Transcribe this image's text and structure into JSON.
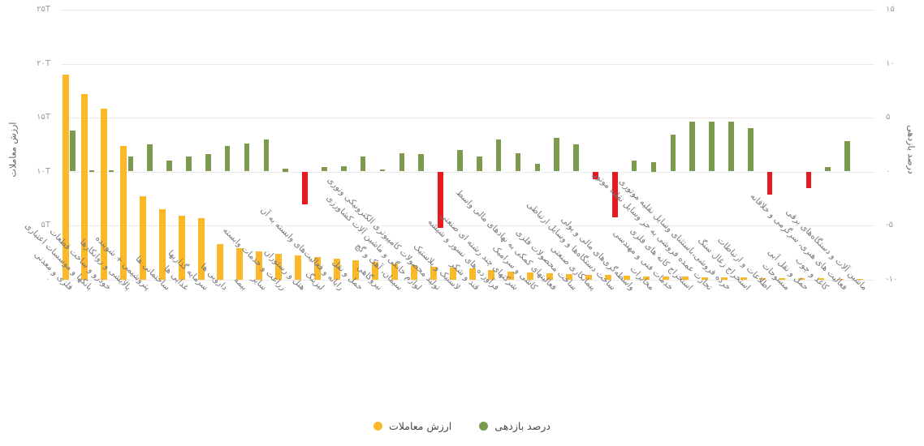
{
  "chart_data": {
    "type": "bar",
    "title": "",
    "left_axis": {
      "title": "ارزش معاملات",
      "ticks": [
        "۲۵T",
        "۲۰T",
        "۱۵T",
        "۱۰T",
        "۵T",
        "۰"
      ],
      "tick_values": [
        25,
        20,
        15,
        10,
        5,
        0
      ],
      "ylim": [
        0,
        25
      ],
      "unit": "T"
    },
    "right_axis": {
      "title": "درصد بازدهی",
      "ticks": [
        "۱۵",
        "۱۰",
        "۵",
        "۰",
        "-۵",
        "-۱۰"
      ],
      "tick_values": [
        15,
        10,
        5,
        0,
        -5,
        -10
      ],
      "ylim": [
        -10,
        15
      ]
    },
    "grid": "horizontal",
    "legend_position": "bottom-center",
    "legend": [
      {
        "label": "ارزش معاملات",
        "color": "#FBB829"
      },
      {
        "label": "درصد بازدهی",
        "color": "#7C9A4E"
      }
    ],
    "negative_color": "#E8191F",
    "categories": [
      "فلزی و معدنی",
      "بانکها و موسسات اعتباری",
      "خودرو و ساخت قطعات",
      "پالایشی و روانکارها",
      "پتروشیمی + شوینده",
      "ساختمانی ها",
      "غذایی ها",
      "سرمایه گذاریها",
      "دارویی ها",
      "بیمه",
      "سایر",
      "زراعت و خدمات وابسته",
      "هتل و رستوران",
      "لیزینگ",
      "رایانه و فعالیت‌های وابسته به آن",
      "حمل و نقل",
      "نیروگاهی",
      "سیمان، آهک و گچ",
      "لوازم خانگی و ماشین آلات کشاورزی",
      "تولید محصولات کامپیوتری الکترونیکی ونوری",
      "لاستیک و پلاستیک",
      "قند و شکر",
      "فرآورده های نسوز و شیشه",
      "شرکتهای چند رشته ای صنعتی",
      "کاشی و سرامیک",
      "فعالیتهای کمکی به نهادهای مالی واسط",
      "ساخت محصولات فلزی",
      "پیمانکاری صنعتی",
      "ساخت دستگاه‌ها و وسایل ارتباطی",
      "واسطه‌گری‌های مالی و پولی",
      "مخابرات",
      "خدمات فنی و مهندسی",
      "استخراج کانه های فلزی",
      "تجارت عمده فروشی به جز وسایل نقلیه موتور",
      "خرده فروشی،باستثنای وسایل نقلیه موتوری",
      "استخراج زغال سنگ",
      "اطلاعات و ارتباطات",
      "منسوجات",
      "حمل و نقل آبی",
      "کاغذ و چوب",
      "فعالیت های هنری، سرگرمی و خلاقانه",
      "ماشین آلات و دستگاه‌های برقی"
    ],
    "series": [
      {
        "name": "ارزش معاملات",
        "axis": "left",
        "unit": "T",
        "values": [
          19.0,
          17.2,
          15.8,
          12.4,
          7.7,
          6.5,
          5.9,
          5.7,
          3.3,
          2.9,
          2.6,
          2.4,
          2.2,
          2.1,
          1.9,
          1.8,
          1.65,
          1.5,
          1.35,
          1.2,
          1.1,
          1.0,
          0.85,
          0.75,
          0.65,
          0.55,
          0.5,
          0.45,
          0.4,
          0.35,
          0.3,
          0.28,
          0.25,
          0.22,
          0.2,
          0.17,
          0.15,
          0.13,
          0.11,
          0.1,
          0.08,
          0.06
        ]
      },
      {
        "name": "درصد بازدهی",
        "axis": "right",
        "unit": "%",
        "values": [
          3.8,
          0.1,
          0.1,
          1.4,
          2.5,
          1.0,
          1.4,
          1.6,
          2.4,
          2.6,
          3.0,
          0.3,
          -3.0,
          0.4,
          0.5,
          1.4,
          0.2,
          1.7,
          1.6,
          -5.2,
          2.0,
          1.4,
          3.0,
          1.7,
          0.7,
          3.1,
          2.5,
          -0.7,
          -4.2,
          1.0,
          0.9,
          3.4,
          4.6,
          4.6,
          4.6,
          4.0,
          -2.1,
          0.0,
          -1.5,
          0.4,
          2.8,
          0.0
        ]
      }
    ]
  }
}
